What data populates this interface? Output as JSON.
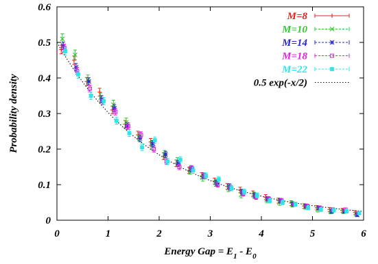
{
  "chart_data": {
    "type": "scatter",
    "xlabel": "Energy Gap = E",
    "xlabel_sub1": "1",
    "xlabel_mid": " - E",
    "xlabel_sub2": "0",
    "ylabel": "Probability density",
    "xlim": [
      0,
      6
    ],
    "ylim": [
      0,
      0.6
    ],
    "xticks": [
      "0",
      "1",
      "2",
      "3",
      "4",
      "5",
      "6"
    ],
    "yticks": [
      "0",
      "0.1",
      "0.2",
      "0.3",
      "0.4",
      "0.5",
      "0.6"
    ],
    "grid": false,
    "legend_position": "top-right",
    "x": [
      0.125,
      0.375,
      0.625,
      0.875,
      1.125,
      1.375,
      1.625,
      1.875,
      2.125,
      2.375,
      2.625,
      2.875,
      3.125,
      3.375,
      3.625,
      3.875,
      4.125,
      4.375,
      4.625,
      4.875,
      5.125,
      5.375,
      5.625,
      5.875
    ],
    "series": [
      {
        "name": "M=8",
        "color": "#e8201e",
        "marker": "plus",
        "values": [
          0.48,
          0.45,
          0.39,
          0.36,
          0.31,
          0.27,
          0.24,
          0.22,
          0.18,
          0.16,
          0.14,
          0.125,
          0.11,
          0.095,
          0.085,
          0.075,
          0.065,
          0.055,
          0.048,
          0.04,
          0.035,
          0.03,
          0.028,
          0.022
        ]
      },
      {
        "name": "M=10",
        "color": "#2ec82e",
        "marker": "x",
        "values": [
          0.51,
          0.465,
          0.395,
          0.345,
          0.325,
          0.275,
          0.235,
          0.21,
          0.185,
          0.165,
          0.14,
          0.12,
          0.105,
          0.09,
          0.072,
          0.07,
          0.058,
          0.05,
          0.045,
          0.038,
          0.03,
          0.025,
          0.025,
          0.018
        ]
      },
      {
        "name": "M=14",
        "color": "#2727c8",
        "marker": "star",
        "values": [
          0.49,
          0.43,
          0.39,
          0.34,
          0.315,
          0.265,
          0.23,
          0.215,
          0.185,
          0.16,
          0.145,
          0.125,
          0.105,
          0.095,
          0.08,
          0.07,
          0.06,
          0.055,
          0.045,
          0.04,
          0.035,
          0.025,
          0.025,
          0.015
        ]
      },
      {
        "name": "M=18",
        "color": "#e41ee4",
        "marker": "square",
        "values": [
          0.485,
          0.42,
          0.37,
          0.335,
          0.305,
          0.265,
          0.24,
          0.2,
          0.165,
          0.15,
          0.145,
          0.125,
          0.1,
          0.09,
          0.075,
          0.065,
          0.06,
          0.055,
          0.045,
          0.04,
          0.035,
          0.03,
          0.03,
          0.02
        ]
      },
      {
        "name": "M=22",
        "color": "#2ee6e6",
        "marker": "filled-square",
        "values": [
          0.475,
          0.41,
          0.35,
          0.335,
          0.28,
          0.245,
          0.205,
          0.225,
          0.165,
          0.17,
          0.14,
          0.125,
          0.115,
          0.09,
          0.08,
          0.07,
          0.055,
          0.05,
          0.045,
          0.035,
          0.03,
          0.028,
          0.025,
          0.02
        ]
      }
    ],
    "curve": {
      "name": "0.5 exp(-x/2)",
      "color": "#000000",
      "style": "dotted"
    }
  }
}
